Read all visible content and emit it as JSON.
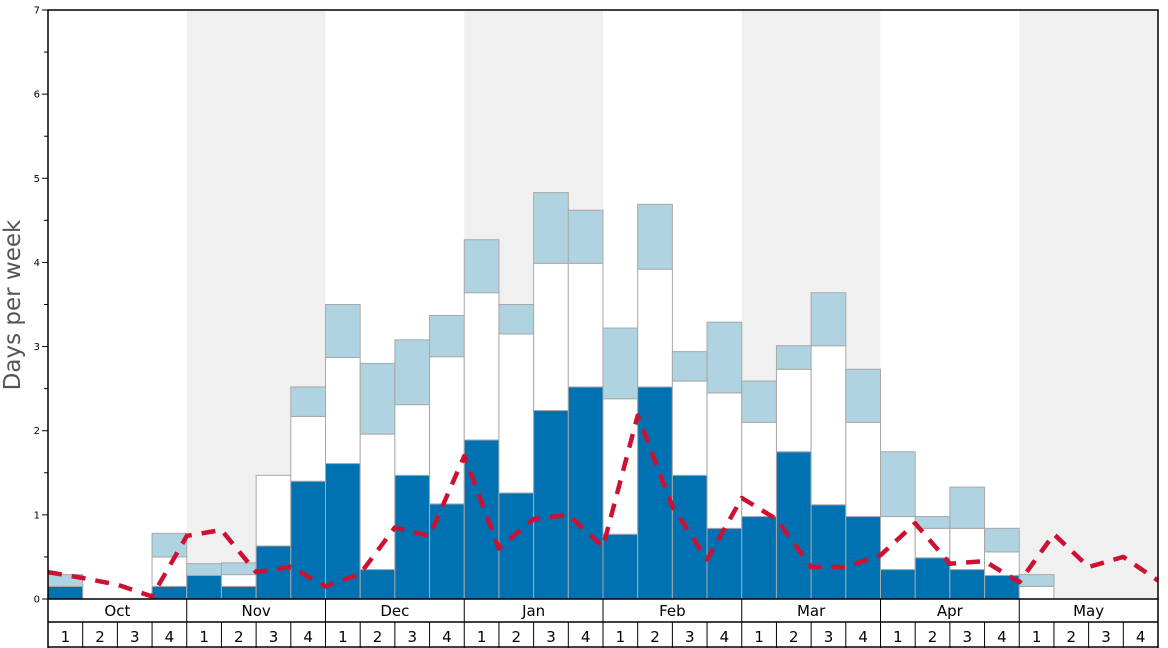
{
  "chart_data": {
    "type": "bar",
    "ylabel": "Days per week",
    "ylim": [
      0,
      7
    ],
    "y_ticks": [
      "0",
      "1",
      "2",
      "3",
      "4",
      "5",
      "6",
      "7"
    ],
    "months": [
      "Oct",
      "Nov",
      "Dec",
      "Jan",
      "Feb",
      "Mar",
      "Apr",
      "May"
    ],
    "week_labels": [
      "1",
      "2",
      "3",
      "4"
    ],
    "stacked": true,
    "series": [
      {
        "color": "#0072b2",
        "values": [
          0.15,
          0,
          0,
          0.15,
          0.28,
          0.15,
          0.63,
          1.4,
          1.61,
          0.35,
          1.47,
          1.13,
          1.89,
          1.26,
          2.24,
          2.52,
          0.77,
          2.52,
          1.47,
          0.84,
          0.98,
          1.75,
          1.12,
          0.98,
          0.35,
          0.49,
          0.35,
          0.28,
          0,
          0,
          0,
          0
        ]
      },
      {
        "color": "#ffffff",
        "values": [
          0,
          0,
          0,
          0.35,
          0,
          0.14,
          0.84,
          0.77,
          1.26,
          1.61,
          0.84,
          1.75,
          1.75,
          1.89,
          1.75,
          1.47,
          1.61,
          1.4,
          1.12,
          1.61,
          1.12,
          0.98,
          1.89,
          1.12,
          0.63,
          0.35,
          0.49,
          0.28,
          0.15,
          0,
          0,
          0
        ]
      },
      {
        "color": "#afd3e0",
        "values": [
          0.14,
          0,
          0,
          0.28,
          0.14,
          0.14,
          0,
          0.35,
          0.63,
          0.84,
          0.77,
          0.49,
          0.63,
          0.35,
          0.84,
          0.63,
          0.84,
          0.77,
          0.35,
          0.84,
          0.49,
          0.28,
          0.63,
          0.63,
          0.77,
          0.14,
          0.49,
          0.28,
          0.14,
          0,
          0,
          0
        ]
      }
    ],
    "line": {
      "color": "#cc1133",
      "style": "dashed",
      "values": [
        0.32,
        0.25,
        0.17,
        0.03,
        0.75,
        0.82,
        0.32,
        0.38,
        0.15,
        0.3,
        0.85,
        0.75,
        1.7,
        0.6,
        0.95,
        1.0,
        0.62,
        2.18,
        1.1,
        0.47,
        1.2,
        0.95,
        0.38,
        0.38,
        0.52,
        0.9,
        0.42,
        0.45,
        0.2,
        0.77,
        0.38,
        0.5,
        0.22
      ]
    },
    "grid": false,
    "shaded_months": [
      "Nov",
      "Jan",
      "Mar",
      "May"
    ]
  }
}
